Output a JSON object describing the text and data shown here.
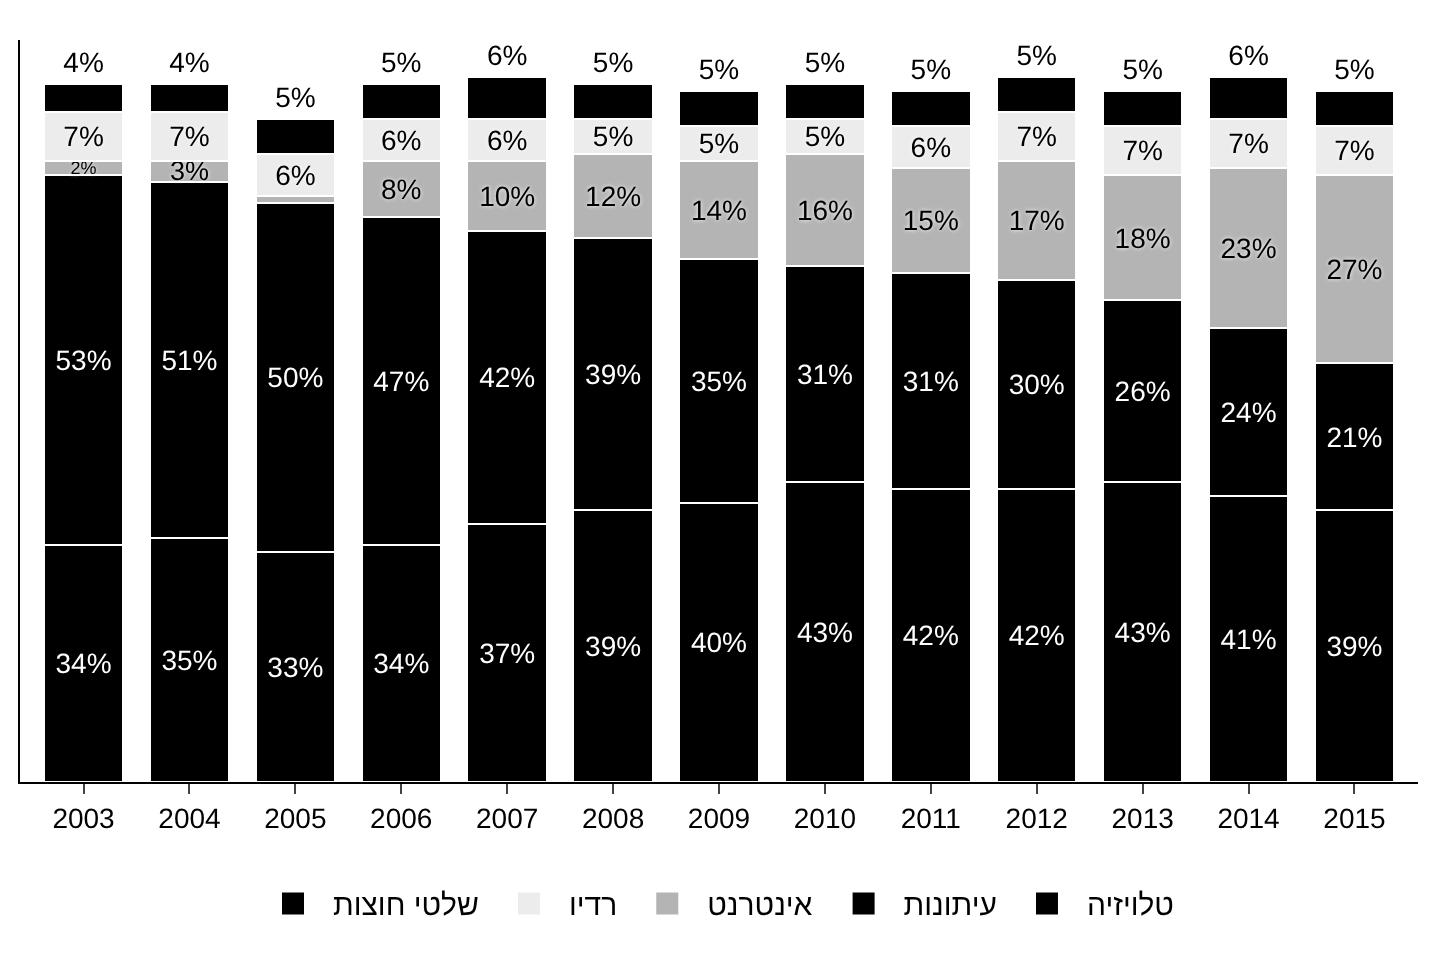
{
  "chart_data": {
    "type": "bar",
    "stacked": true,
    "legend": "bottom",
    "categories": [
      "2003",
      "2004",
      "2005",
      "2006",
      "2007",
      "2008",
      "2009",
      "2010",
      "2011",
      "2012",
      "2013",
      "2014",
      "2015"
    ],
    "series": [
      {
        "name": "טלויזיה",
        "color": "#000000",
        "values": [
          34,
          35,
          33,
          34,
          37,
          39,
          40,
          43,
          42,
          42,
          43,
          41,
          39
        ],
        "value_labels": [
          "34%",
          "35%",
          "33%",
          "34%",
          "37%",
          "39%",
          "40%",
          "43%",
          "42%",
          "42%",
          "43%",
          "41%",
          "39%"
        ]
      },
      {
        "name": "עיתונות",
        "color": "#000000",
        "values": [
          53,
          51,
          50,
          47,
          42,
          39,
          35,
          31,
          31,
          30,
          26,
          24,
          21
        ],
        "value_labels": [
          "53%",
          "51%",
          "50%",
          "47%",
          "42%",
          "39%",
          "35%",
          "31%",
          "31%",
          "30%",
          "26%",
          "24%",
          "21%"
        ]
      },
      {
        "name": "אינטרנט",
        "color": "#b4b4b4",
        "values": [
          2,
          3,
          1,
          8,
          10,
          12,
          14,
          16,
          15,
          17,
          18,
          23,
          27
        ],
        "value_labels": [
          "2%",
          "3%",
          null,
          "8%",
          "10%",
          "12%",
          "14%",
          "16%",
          "15%",
          "17%",
          "18%",
          "23%",
          "27%"
        ]
      },
      {
        "name": "רדיו",
        "color": "#ececec",
        "values": [
          7,
          7,
          6,
          6,
          6,
          5,
          5,
          5,
          6,
          7,
          7,
          7,
          7
        ],
        "value_labels": [
          "7%",
          "7%",
          "6%",
          "6%",
          "6%",
          "5%",
          "5%",
          "5%",
          "6%",
          "7%",
          "7%",
          "7%",
          "7%"
        ]
      },
      {
        "name": "שלטי חוצות",
        "color": "#000000",
        "values": [
          4,
          4,
          5,
          5,
          6,
          5,
          5,
          5,
          5,
          5,
          5,
          6,
          5
        ],
        "value_labels": [
          "4%",
          "4%",
          "5%",
          "5%",
          "6%",
          "5%",
          "5%",
          "5%",
          "5%",
          "5%",
          "5%",
          "6%",
          "5%"
        ]
      }
    ]
  }
}
